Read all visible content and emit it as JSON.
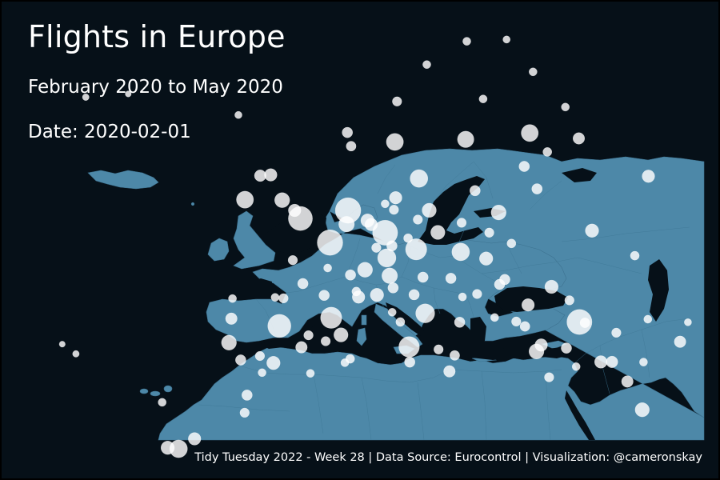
{
  "title": "Flights in Europe",
  "subtitle": "February 2020 to May 2020",
  "date_label": "Date:",
  "date_value": "2020-02-01",
  "caption": "Tidy Tuesday 2022 - Week 28 | Data Source: Eurocontrol | Visualization: @cameronskay",
  "colors": {
    "background": "#061018",
    "land": "#4d88a8",
    "airport_marker": "#ffffff",
    "text": "#ffffff"
  },
  "map": {
    "region": "Europe",
    "markers": [
      {
        "lon": -0.45,
        "lat": 51.47,
        "flights": 1300
      },
      {
        "lon": 2.55,
        "lat": 49.01,
        "flights": 1450
      },
      {
        "lon": 8.57,
        "lat": 50.04,
        "flights": 1400
      },
      {
        "lon": 4.76,
        "lat": 52.31,
        "flights": 1450
      },
      {
        "lon": 28.81,
        "lat": 40.98,
        "flights": 1400
      },
      {
        "lon": -3.57,
        "lat": 40.47,
        "flights": 1200
      },
      {
        "lon": 2.08,
        "lat": 41.3,
        "flights": 1000
      },
      {
        "lon": 11.79,
        "lat": 48.35,
        "flights": 1000
      },
      {
        "lon": 12.25,
        "lat": 41.8,
        "flights": 800
      },
      {
        "lon": 8.55,
        "lat": 47.46,
        "flights": 750
      },
      {
        "lon": 16.57,
        "lat": 48.11,
        "flights": 700
      },
      {
        "lon": 12.65,
        "lat": 55.62,
        "flights": 700
      },
      {
        "lon": 10.25,
        "lat": 38.35,
        "flights": 950
      },
      {
        "lon": 24.96,
        "lat": 60.32,
        "flights": 650
      },
      {
        "lon": 10.35,
        "lat": 59.35,
        "flights": 650
      },
      {
        "lon": 18.0,
        "lat": 59.65,
        "flights": 600
      },
      {
        "lon": -6.27,
        "lat": 53.42,
        "flights": 650
      },
      {
        "lon": -15.4,
        "lat": 27.93,
        "flights": 700
      },
      {
        "lon": -2.27,
        "lat": 53.35,
        "flights": 500
      },
      {
        "lon": 20.97,
        "lat": 52.17,
        "flights": 500
      },
      {
        "lon": 4.48,
        "lat": 50.9,
        "flights": 550
      },
      {
        "lon": 6.11,
        "lat": 46.24,
        "flights": 500
      },
      {
        "lon": 8.72,
        "lat": 45.63,
        "flights": 550
      },
      {
        "lon": 23.94,
        "lat": 37.94,
        "flights": 500
      },
      {
        "lon": 34.88,
        "lat": 32.01,
        "flights": 450
      },
      {
        "lon": 14.26,
        "lat": 50.1,
        "flights": 450
      },
      {
        "lon": 19.26,
        "lat": 47.44,
        "flights": 400
      },
      {
        "lon": 26.08,
        "lat": 44.57,
        "flights": 400
      },
      {
        "lon": -9.13,
        "lat": 38.78,
        "flights": 500
      },
      {
        "lon": 23.41,
        "lat": 42.7,
        "flights": 350
      },
      {
        "lon": 30.89,
        "lat": 50.35,
        "flights": 400
      },
      {
        "lon": 37.4,
        "lat": 55.95,
        "flights": 350
      },
      {
        "lon": 13.5,
        "lat": 52.36,
        "flights": 450
      },
      {
        "lon": 9.99,
        "lat": 53.63,
        "flights": 350
      },
      {
        "lon": 6.77,
        "lat": 51.28,
        "flights": 400
      },
      {
        "lon": 7.14,
        "lat": 50.87,
        "flights": 350
      },
      {
        "lon": 14.4,
        "lat": 35.86,
        "flights": 300
      },
      {
        "lon": 33.5,
        "lat": 34.9,
        "flights": 300
      },
      {
        "lon": -4.5,
        "lat": 36.68,
        "flights": 400
      },
      {
        "lon": 3.0,
        "lat": 39.55,
        "flights": 450
      },
      {
        "lon": 5.2,
        "lat": 43.44,
        "flights": 350
      },
      {
        "lon": 7.2,
        "lat": 43.66,
        "flights": 400
      },
      {
        "lon": -1.36,
        "lat": 38.28,
        "flights": 300
      },
      {
        "lon": -8.68,
        "lat": 41.24,
        "flights": 300
      },
      {
        "lon": -16.57,
        "lat": 28.04,
        "flights": 400
      },
      {
        "lon": -13.6,
        "lat": 28.95,
        "flights": 350
      },
      {
        "lon": -3.3,
        "lat": 55.95,
        "flights": 350
      },
      {
        "lon": -4.43,
        "lat": 55.87,
        "flights": 300
      },
      {
        "lon": -1.0,
        "lat": 52.3,
        "flights": 350
      },
      {
        "lon": 32.0,
        "lat": 36.9,
        "flights": 300
      },
      {
        "lon": 24.5,
        "lat": 38.6,
        "flights": 350
      },
      {
        "lon": 39.5,
        "lat": 39.0,
        "flights": 300
      },
      {
        "lon": 30.2,
        "lat": 59.8,
        "flights": 300
      },
      {
        "lon": 24.1,
        "lat": 56.9,
        "flights": 250
      },
      {
        "lon": 25.3,
        "lat": 54.6,
        "flights": 250
      },
      {
        "lon": 21.1,
        "lat": 45.3,
        "flights": 250
      },
      {
        "lon": 15.3,
        "lat": 45.4,
        "flights": 250
      },
      {
        "lon": 18.6,
        "lat": 54.4,
        "flights": 250
      },
      {
        "lon": 9.0,
        "lat": 44.4,
        "flights": 250
      },
      {
        "lon": 11.2,
        "lat": 43.7,
        "flights": 250
      },
      {
        "lon": 15.9,
        "lat": 40.9,
        "flights": 250
      },
      {
        "lon": 10.2,
        "lat": 36.8,
        "flights": 250
      },
      {
        "lon": 1.5,
        "lat": 43.6,
        "flights": 250
      },
      {
        "lon": -0.7,
        "lat": 44.8,
        "flights": 250
      },
      {
        "lon": -1.6,
        "lat": 47.2,
        "flights": 200
      },
      {
        "lon": 4.5,
        "lat": 45.7,
        "flights": 250
      },
      {
        "lon": 7.5,
        "lat": 48.5,
        "flights": 200
      },
      {
        "lon": 22.0,
        "lat": 41.0,
        "flights": 200
      },
      {
        "lon": 27.9,
        "lat": 43.2,
        "flights": 200
      },
      {
        "lon": 44.8,
        "lat": 41.7,
        "flights": 200
      },
      {
        "lon": 3.8,
        "lat": 37.1,
        "flights": 180
      },
      {
        "lon": 12.3,
        "lat": 45.5,
        "flights": 250
      },
      {
        "lon": 18.0,
        "lat": 43.8,
        "flights": 200
      },
      {
        "lon": 20.5,
        "lat": 44.8,
        "flights": 250
      },
      {
        "lon": 16.9,
        "lat": 51.1,
        "flights": 200
      },
      {
        "lon": 19.8,
        "lat": 50.1,
        "flights": 200
      },
      {
        "lon": 22.1,
        "lat": 49.0,
        "flights": 180
      },
      {
        "lon": 35.3,
        "lat": 47.8,
        "flights": 180
      },
      {
        "lon": 26.7,
        "lat": 58.4,
        "flights": 180
      },
      {
        "lon": 29.0,
        "lat": 63.0,
        "flights": 150
      },
      {
        "lon": 20.2,
        "lat": 63.8,
        "flights": 150
      },
      {
        "lon": 10.9,
        "lat": 63.5,
        "flights": 200
      },
      {
        "lon": 5.3,
        "lat": 60.3,
        "flights": 250
      },
      {
        "lon": 5.6,
        "lat": 58.9,
        "flights": 220
      },
      {
        "lon": 18.9,
        "lat": 69.7,
        "flights": 150
      },
      {
        "lon": 25.8,
        "lat": 66.6,
        "flights": 150
      },
      {
        "lon": 14.4,
        "lat": 67.3,
        "flights": 150
      },
      {
        "lon": 23.2,
        "lat": 69.9,
        "flights": 120
      },
      {
        "lon": -6.3,
        "lat": 62.1,
        "flights": 120
      },
      {
        "lon": -22.6,
        "lat": 63.99,
        "flights": 100
      },
      {
        "lon": -18.0,
        "lat": 64.3,
        "flights": 80
      },
      {
        "lon": -25.7,
        "lat": 37.7,
        "flights": 100
      },
      {
        "lon": -27.1,
        "lat": 38.7,
        "flights": 80
      },
      {
        "lon": -16.8,
        "lat": 32.7,
        "flights": 150
      },
      {
        "lon": -8.0,
        "lat": 31.6,
        "flights": 200
      },
      {
        "lon": -7.6,
        "lat": 33.4,
        "flights": 250
      },
      {
        "lon": -5.8,
        "lat": 35.7,
        "flights": 150
      },
      {
        "lon": 3.2,
        "lat": 36.7,
        "flights": 150
      },
      {
        "lon": -0.6,
        "lat": 35.6,
        "flights": 150
      },
      {
        "lon": 9.7,
        "lat": 52.4,
        "flights": 200
      },
      {
        "lon": 8.8,
        "lat": 53.0,
        "flights": 150
      },
      {
        "lon": 11.0,
        "lat": 49.5,
        "flights": 180
      },
      {
        "lon": 9.2,
        "lat": 48.7,
        "flights": 250
      },
      {
        "lon": 12.2,
        "lat": 51.4,
        "flights": 200
      },
      {
        "lon": 2.1,
        "lat": 46.4,
        "flights": 150
      },
      {
        "lon": 5.0,
        "lat": 44.0,
        "flights": 180
      },
      {
        "lon": 8.7,
        "lat": 41.9,
        "flights": 150
      },
      {
        "lon": 9.5,
        "lat": 40.9,
        "flights": 180
      },
      {
        "lon": 13.4,
        "lat": 38.1,
        "flights": 200
      },
      {
        "lon": 15.1,
        "lat": 37.5,
        "flights": 220
      },
      {
        "lon": 16.4,
        "lat": 43.5,
        "flights": 150
      },
      {
        "lon": 19.7,
        "lat": 41.4,
        "flights": 150
      },
      {
        "lon": 22.9,
        "lat": 40.5,
        "flights": 220
      },
      {
        "lon": 25.1,
        "lat": 35.3,
        "flights": 200
      },
      {
        "lon": 28.1,
        "lat": 36.4,
        "flights": 150
      },
      {
        "lon": 27.2,
        "lat": 38.3,
        "flights": 250
      },
      {
        "lon": 30.8,
        "lat": 36.9,
        "flights": 350
      },
      {
        "lon": 35.4,
        "lat": 36.9,
        "flights": 150
      },
      {
        "lon": 32.7,
        "lat": 39.9,
        "flights": 200
      },
      {
        "lon": 36.2,
        "lat": 41.3,
        "flights": 150
      },
      {
        "lon": 40.5,
        "lat": 41.0,
        "flights": 120
      },
      {
        "lon": 29.4,
        "lat": 40.9,
        "flights": 220
      },
      {
        "lon": 47.2,
        "lat": 41.5,
        "flights": 120
      },
      {
        "lon": -3.8,
        "lat": 43.4,
        "flights": 150
      },
      {
        "lon": -2.9,
        "lat": 43.3,
        "flights": 200
      },
      {
        "lon": -8.4,
        "lat": 43.3,
        "flights": 150
      },
      {
        "lon": -5.9,
        "lat": 37.4,
        "flights": 200
      },
      {
        "lon": -0.5,
        "lat": 39.5,
        "flights": 200
      },
      {
        "lon": -8.0,
        "lat": 37.0,
        "flights": 250
      },
      {
        "lon": 1.3,
        "lat": 38.9,
        "flights": 200
      }
    ]
  }
}
